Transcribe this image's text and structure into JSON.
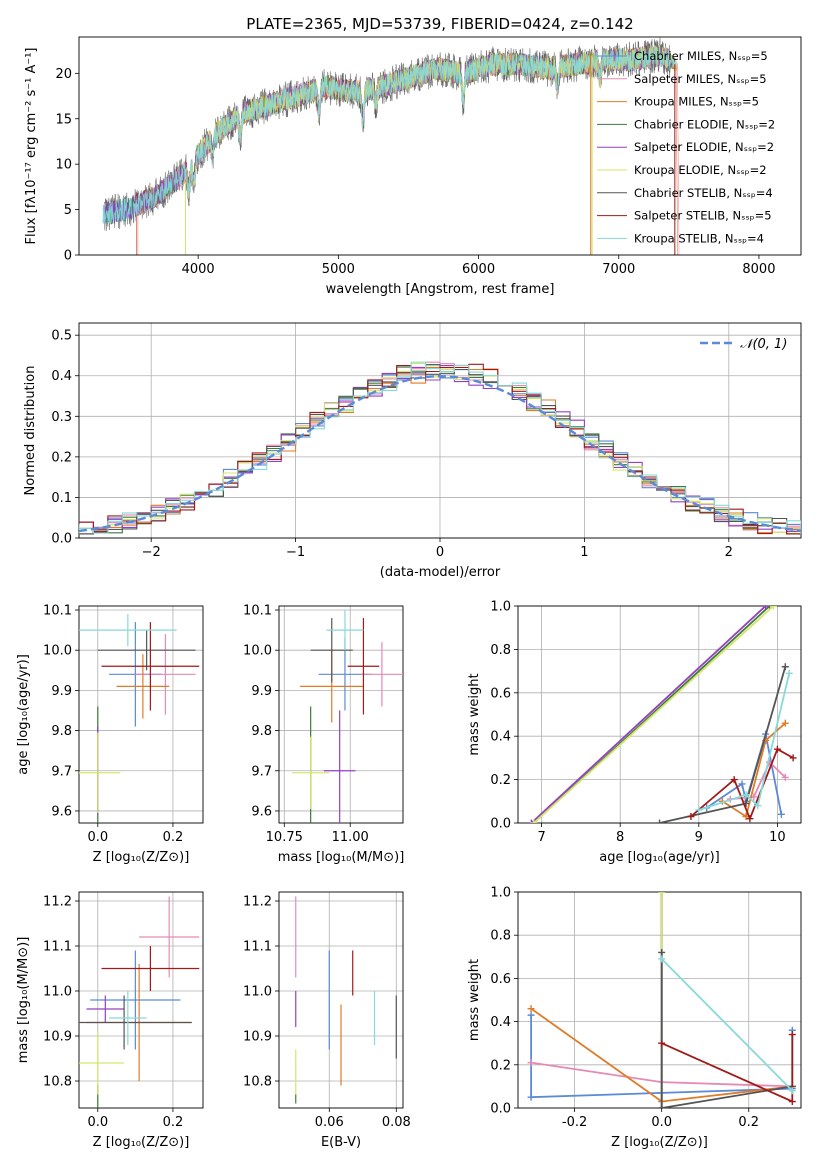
{
  "series_colors": [
    "#5b8ad6",
    "#e689b4",
    "#e07b27",
    "#3d7a3d",
    "#9440c0",
    "#d4e66a",
    "#555555",
    "#a01a1a",
    "#86dada"
  ],
  "chart_data": [
    {
      "id": "spectrum",
      "type": "line",
      "title": "PLATE=2365, MJD=53739, FIBERID=0424, z=0.142",
      "xlabel": "wavelength [Angstrom, rest frame]",
      "ylabel": "Flux [fλ10⁻¹⁷ erg cm⁻² s⁻¹ A⁻¹]",
      "xlim": [
        3150,
        8300
      ],
      "ylim": [
        0,
        24
      ],
      "xticks": [
        4000,
        5000,
        6000,
        7000,
        8000
      ],
      "yticks": [
        0,
        5,
        10,
        15,
        20
      ],
      "grid": false,
      "legend_position": "right",
      "series": [
        {
          "name": "Chabrier MILES, Nₛₛₚ=5"
        },
        {
          "name": "Salpeter MILES, Nₛₛₚ=5"
        },
        {
          "name": "Kroupa MILES, Nₛₛₚ=5"
        },
        {
          "name": "Chabrier ELODIE, Nₛₛₚ=2"
        },
        {
          "name": "Salpeter ELODIE, Nₛₛₚ=2"
        },
        {
          "name": "Kroupa ELODIE, Nₛₛₚ=2"
        },
        {
          "name": "Chabrier STELIB, Nₛₛₚ=4"
        },
        {
          "name": "Salpeter STELIB, Nₛₛₚ=5"
        },
        {
          "name": "Kroupa STELIB, Nₛₛₚ=4"
        }
      ],
      "continuum": {
        "x": [
          3320,
          3500,
          3700,
          3900,
          4100,
          4300,
          4500,
          4700,
          4900,
          5100,
          5300,
          5500,
          5700,
          5900,
          6100,
          6300,
          6500,
          6700,
          6900,
          7100,
          7300,
          7400
        ],
        "y": [
          4.5,
          5.0,
          6.5,
          9.0,
          13.0,
          15.5,
          16.5,
          17.5,
          18.5,
          18.0,
          18.5,
          19.5,
          20.5,
          20.0,
          21.0,
          21.0,
          20.5,
          21.0,
          21.5,
          21.5,
          22.0,
          21.0
        ]
      }
    },
    {
      "id": "residuals",
      "type": "line",
      "xlabel": "(data-model)/error",
      "ylabel": "Normed distribution",
      "xlim": [
        -2.5,
        2.5
      ],
      "ylim": [
        0,
        0.53
      ],
      "xticks": [
        -2,
        -1,
        0,
        1,
        2
      ],
      "yticks": [
        0.0,
        0.1,
        0.2,
        0.3,
        0.4,
        0.5
      ],
      "grid": true,
      "legend": "𝒩(0, 1)",
      "legend_position": "top-right",
      "bin_width": 0.1
    },
    {
      "id": "age_vs_Z",
      "type": "scatter",
      "xlabel": "Z [log₁₀(Z/Z⊙)]",
      "ylabel": "age  [log₁₀(age/yr)]",
      "xlim": [
        -0.05,
        0.28
      ],
      "ylim": [
        9.57,
        10.11
      ],
      "xticks": [
        0.0,
        0.2
      ],
      "yticks": [
        9.6,
        9.7,
        9.8,
        9.9,
        10.0,
        10.1
      ],
      "grid": true,
      "points": [
        {
          "x": 0.1,
          "xerr": 0.07,
          "y": 9.94,
          "yerr": 0.13
        },
        {
          "x": 0.18,
          "xerr": 0.08,
          "y": 9.94,
          "yerr": 0.1
        },
        {
          "x": 0.12,
          "xerr": 0.07,
          "y": 9.91,
          "yerr": 0.08
        },
        {
          "x": 0.0,
          "xerr": 0.0,
          "y": 9.71,
          "yerr": 0.15
        },
        {
          "x": 0.0,
          "xerr": 0.0,
          "y": 9.7,
          "yerr": 0.11
        },
        {
          "x": 0.0,
          "xerr": 0.06,
          "y": 9.695,
          "yerr": 0.1
        },
        {
          "x": 0.13,
          "xerr": 0.13,
          "y": 10.0,
          "yerr": 0.05
        },
        {
          "x": 0.14,
          "xerr": 0.13,
          "y": 9.96,
          "yerr": 0.11
        },
        {
          "x": 0.08,
          "xerr": 0.13,
          "y": 10.05,
          "yerr": 0.04
        }
      ]
    },
    {
      "id": "age_vs_mass",
      "type": "scatter",
      "xlabel": "mass [log₁₀(M/M⊙)]",
      "ylabel": "",
      "xlim": [
        10.73,
        11.2
      ],
      "ylim": [
        9.57,
        10.11
      ],
      "xticks": [
        10.75,
        11.0
      ],
      "yticks": [
        9.6,
        9.7,
        9.8,
        9.9,
        10.0,
        10.1
      ],
      "grid": true,
      "points": [
        {
          "x": 10.98,
          "xerr": 0.1,
          "y": 9.94,
          "yerr": 0.09
        },
        {
          "x": 11.12,
          "xerr": 0.08,
          "y": 9.94,
          "yerr": 0.08
        },
        {
          "x": 10.93,
          "xerr": 0.12,
          "y": 9.91,
          "yerr": 0.09
        },
        {
          "x": 10.85,
          "xerr": 0.0,
          "y": 9.7,
          "yerr": 0.16
        },
        {
          "x": 10.96,
          "xerr": 0.06,
          "y": 9.7,
          "yerr": 0.15
        },
        {
          "x": 10.85,
          "xerr": 0.07,
          "y": 9.695,
          "yerr": 0.09
        },
        {
          "x": 10.93,
          "xerr": 0.08,
          "y": 10.0,
          "yerr": 0.08
        },
        {
          "x": 11.05,
          "xerr": 0.06,
          "y": 9.96,
          "yerr": 0.12
        },
        {
          "x": 10.98,
          "xerr": 0.07,
          "y": 10.05,
          "yerr": 0.05
        }
      ]
    },
    {
      "id": "weight_vs_age",
      "type": "line",
      "xlabel": "age  [log₁₀(age/yr)]",
      "ylabel": "mass weight",
      "xlim": [
        6.7,
        10.3
      ],
      "ylim": [
        0,
        1.0
      ],
      "xticks": [
        7,
        8,
        9,
        10
      ],
      "yticks": [
        0.0,
        0.2,
        0.4,
        0.6,
        0.8,
        1.0
      ],
      "grid": true,
      "series": [
        {
          "x": [
            9.1,
            9.55,
            9.6,
            9.85,
            10.05
          ],
          "y": [
            0.07,
            0.18,
            0.1,
            0.41,
            0.04
          ]
        },
        {
          "x": [
            9.4,
            9.7,
            9.9,
            10.1
          ],
          "y": [
            0.11,
            0.12,
            0.28,
            0.21
          ]
        },
        {
          "x": [
            9.3,
            9.6,
            9.85,
            10.1
          ],
          "y": [
            0.1,
            0.03,
            0.38,
            0.46
          ]
        },
        {
          "x": [
            6.9,
            9.9
          ],
          "y": [
            0.0,
            1.0
          ]
        },
        {
          "x": [
            6.87,
            9.85
          ],
          "y": [
            0.0,
            1.0
          ]
        },
        {
          "x": [
            6.9,
            9.95
          ],
          "y": [
            0.0,
            1.0
          ]
        },
        {
          "x": [
            8.5,
            9.6,
            10.1
          ],
          "y": [
            0.0,
            0.09,
            0.72
          ]
        },
        {
          "x": [
            8.9,
            9.45,
            9.65,
            10.0,
            10.2
          ],
          "y": [
            0.03,
            0.2,
            0.02,
            0.34,
            0.3
          ]
        },
        {
          "x": [
            9.0,
            9.6,
            9.75,
            10.15
          ],
          "y": [
            0.06,
            0.13,
            0.08,
            0.69
          ]
        }
      ]
    },
    {
      "id": "mass_vs_Z",
      "type": "scatter",
      "xlabel": "Z [log₁₀(Z/Z⊙)]",
      "ylabel": "mass [log₁₀(M/M⊙)]",
      "xlim": [
        -0.05,
        0.28
      ],
      "ylim": [
        10.74,
        11.22
      ],
      "xticks": [
        0.0,
        0.2
      ],
      "yticks": [
        10.8,
        10.9,
        11.0,
        11.1,
        11.2
      ],
      "grid": true,
      "points": [
        {
          "x": 0.1,
          "xerr": 0.12,
          "y": 10.98,
          "yerr": 0.11
        },
        {
          "x": 0.19,
          "xerr": 0.08,
          "y": 11.12,
          "yerr": 0.09
        },
        {
          "x": 0.11,
          "xerr": 0.14,
          "y": 10.93,
          "yerr": 0.13
        },
        {
          "x": 0.0,
          "xerr": 0.0,
          "y": 10.76,
          "yerr": 0.03
        },
        {
          "x": 0.02,
          "xerr": 0.05,
          "y": 10.96,
          "yerr": 0.03
        },
        {
          "x": 0.0,
          "xerr": 0.07,
          "y": 10.84,
          "yerr": 0.07
        },
        {
          "x": 0.07,
          "xerr": 0.18,
          "y": 10.93,
          "yerr": 0.06
        },
        {
          "x": 0.14,
          "xerr": 0.13,
          "y": 11.05,
          "yerr": 0.05
        },
        {
          "x": 0.08,
          "xerr": 0.05,
          "y": 10.94,
          "yerr": 0.06
        }
      ]
    },
    {
      "id": "mass_vs_EBV",
      "type": "scatter",
      "xlabel": "E(B-V)",
      "ylabel": "",
      "xlim": [
        0.045,
        0.082
      ],
      "ylim": [
        10.74,
        11.22
      ],
      "xticks": [
        0.04,
        0.06,
        0.08
      ],
      "yticks": [
        10.8,
        10.9,
        11.0,
        11.1,
        11.2
      ],
      "grid": true,
      "points": [
        {
          "x": 0.06,
          "y": 10.98,
          "yerr": 0.11
        },
        {
          "x": 0.05,
          "y": 11.12,
          "yerr": 0.09
        },
        {
          "x": 0.0635,
          "y": 10.88,
          "yerr": 0.09
        },
        {
          "x": 0.05,
          "y": 10.76,
          "yerr": 0.01
        },
        {
          "x": 0.05,
          "y": 10.96,
          "yerr": 0.04
        },
        {
          "x": 0.05,
          "y": 10.82,
          "yerr": 0.05
        },
        {
          "x": 0.08,
          "y": 10.92,
          "yerr": 0.07
        },
        {
          "x": 0.067,
          "y": 11.04,
          "yerr": 0.05
        },
        {
          "x": 0.0735,
          "y": 10.94,
          "yerr": 0.06
        }
      ]
    },
    {
      "id": "weight_vs_Z",
      "type": "line",
      "xlabel": "Z [log₁₀(Z/Z⊙)]",
      "ylabel": "mass weight",
      "xlim": [
        -0.33,
        0.32
      ],
      "ylim": [
        0,
        1.0
      ],
      "xticks": [
        -0.2,
        0.0,
        0.2
      ],
      "yticks": [
        0.0,
        0.2,
        0.4,
        0.6,
        0.8,
        1.0
      ],
      "grid": true,
      "series": [
        {
          "x": [
            -0.3,
            -0.3,
            0.0,
            0.3,
            0.3
          ],
          "y": [
            0.43,
            0.05,
            0.07,
            0.09,
            0.36
          ]
        },
        {
          "x": [
            -0.3,
            0.0,
            0.3
          ],
          "y": [
            0.21,
            0.12,
            0.1
          ]
        },
        {
          "x": [
            -0.3,
            0.0,
            0.3
          ],
          "y": [
            0.46,
            0.03,
            0.1
          ]
        },
        {
          "x": [
            0.0,
            0.0
          ],
          "y": [
            0.0,
            1.0
          ]
        },
        {
          "x": [
            0.0,
            0.0
          ],
          "y": [
            0.0,
            1.0
          ]
        },
        {
          "x": [
            0.0,
            0.0
          ],
          "y": [
            0.0,
            1.0
          ]
        },
        {
          "x": [
            0.0,
            0.0,
            0.3
          ],
          "y": [
            0.72,
            0.0,
            0.1
          ]
        },
        {
          "x": [
            0.0,
            0.3,
            0.3
          ],
          "y": [
            0.3,
            0.03,
            0.34
          ]
        },
        {
          "x": [
            0.0,
            0.3
          ],
          "y": [
            0.69,
            0.08
          ]
        }
      ]
    }
  ]
}
